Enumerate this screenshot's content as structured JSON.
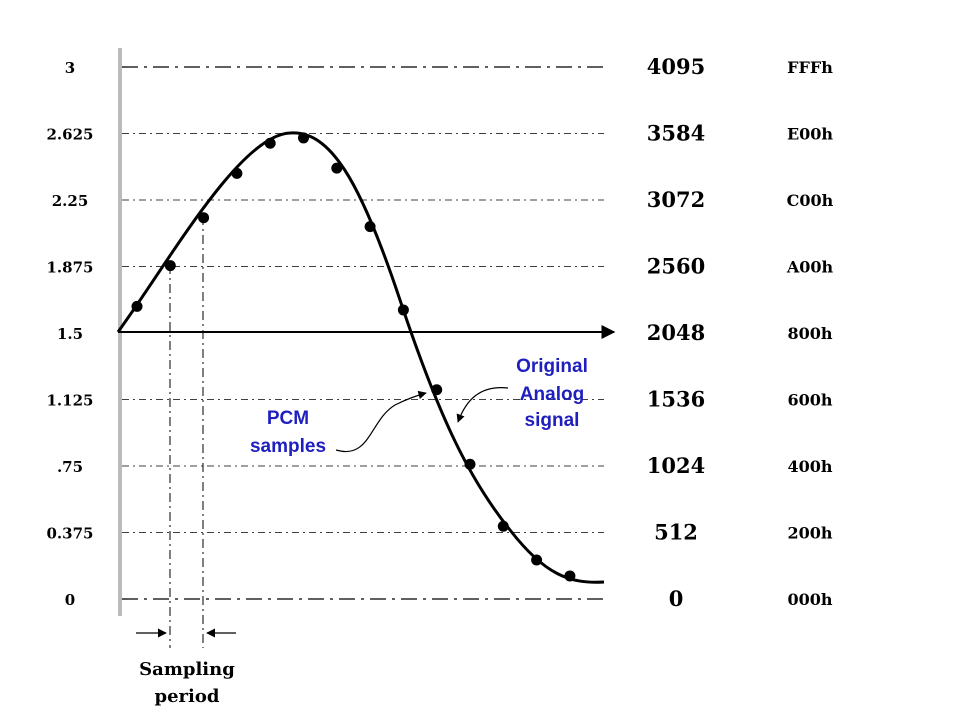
{
  "levels": [
    {
      "volts": "3",
      "decimal": "4095",
      "hex": "FFFh",
      "value": 3
    },
    {
      "volts": "2.625",
      "decimal": "3584",
      "hex": "E00h",
      "value": 2.625
    },
    {
      "volts": "2.25",
      "decimal": "3072",
      "hex": "C00h",
      "value": 2.25
    },
    {
      "volts": "1.875",
      "decimal": "2560",
      "hex": "A00h",
      "value": 1.875
    },
    {
      "volts": "1.5",
      "decimal": "2048",
      "hex": "800h",
      "value": 1.5
    },
    {
      "volts": "1.125",
      "decimal": "1536",
      "hex": "600h",
      "value": 1.125
    },
    {
      "volts": ".75",
      "decimal": "1024",
      "hex": "400h",
      "value": 0.75
    },
    {
      "volts": "0.375",
      "decimal": "512",
      "hex": "200h",
      "value": 0.375
    },
    {
      "volts": "0",
      "decimal": "0",
      "hex": "000h",
      "value": 0
    }
  ],
  "samples": [
    1.65,
    1.88,
    2.15,
    2.4,
    2.57,
    2.6,
    2.43,
    2.1,
    1.63,
    1.18,
    0.76,
    0.41,
    0.22,
    0.13
  ],
  "labels": {
    "pcm_line1": "PCM",
    "pcm_line2": "samples",
    "orig_line1": "Original",
    "orig_line2": "Analog",
    "orig_line3": "signal",
    "period_line1": "Sampling",
    "period_line2": "period"
  },
  "colors": {
    "callout": "#1f1fbf",
    "axis": "#000000",
    "left_bar": "#bbbbbb"
  }
}
